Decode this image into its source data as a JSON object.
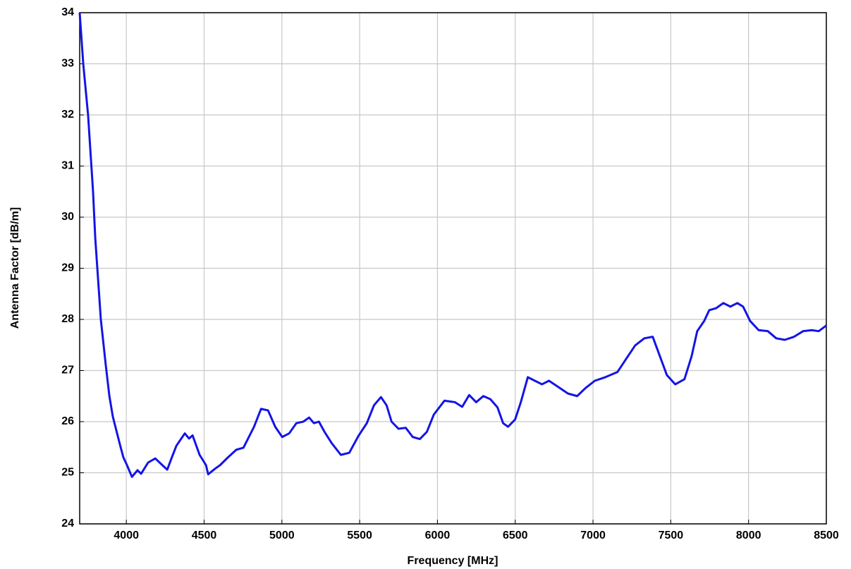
{
  "chart_data": {
    "type": "line",
    "xlabel": "Frequency [MHz]",
    "ylabel": "Antenna Factor [dB/m]",
    "x": [
      3700,
      3723,
      3754,
      3786,
      3800,
      3836,
      3868,
      3891,
      3913,
      3959,
      3981,
      4004,
      4036,
      4072,
      4095,
      4140,
      4186,
      4231,
      4263,
      4290,
      4322,
      4376,
      4403,
      4426,
      4471,
      4512,
      4526,
      4571,
      4603,
      4653,
      4707,
      4753,
      4821,
      4866,
      4911,
      4957,
      5002,
      5047,
      5093,
      5138,
      5175,
      5206,
      5238,
      5274,
      5320,
      5379,
      5433,
      5492,
      5546,
      5592,
      5637,
      5673,
      5705,
      5750,
      5796,
      5841,
      5887,
      5932,
      5977,
      6045,
      6113,
      6159,
      6204,
      6249,
      6295,
      6340,
      6386,
      6422,
      6454,
      6499,
      6536,
      6581,
      6626,
      6672,
      6717,
      6771,
      6839,
      6898,
      6953,
      7012,
      7080,
      7157,
      7216,
      7271,
      7330,
      7384,
      7430,
      7475,
      7529,
      7588,
      7634,
      7670,
      7715,
      7747,
      7792,
      7838,
      7883,
      7928,
      7965,
      8010,
      8065,
      8124,
      8178,
      8233,
      8292,
      8351,
      8405,
      8451,
      8500
    ],
    "series": [
      {
        "name": "Antenna Factor",
        "color": "#1414e6",
        "values": [
          34.0,
          33.0,
          32.0,
          30.5,
          29.6,
          28.0,
          27.1,
          26.5,
          26.1,
          25.55,
          25.3,
          25.15,
          24.92,
          25.05,
          24.98,
          25.2,
          25.28,
          25.15,
          25.06,
          25.28,
          25.53,
          25.77,
          25.67,
          25.73,
          25.35,
          25.15,
          24.97,
          25.08,
          25.15,
          25.3,
          25.45,
          25.49,
          25.9,
          26.25,
          26.22,
          25.9,
          25.7,
          25.77,
          25.97,
          26.0,
          26.08,
          25.97,
          26.0,
          25.8,
          25.58,
          25.35,
          25.39,
          25.72,
          25.97,
          26.32,
          26.48,
          26.32,
          26.0,
          25.86,
          25.88,
          25.7,
          25.66,
          25.8,
          26.14,
          26.41,
          26.38,
          26.29,
          26.52,
          26.38,
          26.5,
          26.44,
          26.28,
          25.97,
          25.9,
          26.04,
          26.38,
          26.87,
          26.8,
          26.73,
          26.8,
          26.69,
          26.55,
          26.5,
          26.66,
          26.8,
          26.87,
          26.97,
          27.24,
          27.49,
          27.63,
          27.66,
          27.28,
          26.91,
          26.73,
          26.83,
          27.28,
          27.77,
          27.97,
          28.18,
          28.22,
          28.32,
          28.25,
          28.32,
          28.25,
          27.97,
          27.79,
          27.77,
          27.63,
          27.6,
          27.66,
          27.77,
          27.79,
          27.77,
          27.88
        ]
      }
    ],
    "xlim": [
      3700,
      8500
    ],
    "xticks": [
      4000,
      4500,
      5000,
      5500,
      6000,
      6500,
      7000,
      7500,
      8000,
      8500
    ],
    "ylim": [
      24,
      34
    ],
    "yticks": [
      24,
      25,
      26,
      27,
      28,
      29,
      30,
      31,
      32,
      33,
      34
    ],
    "grid": true
  }
}
